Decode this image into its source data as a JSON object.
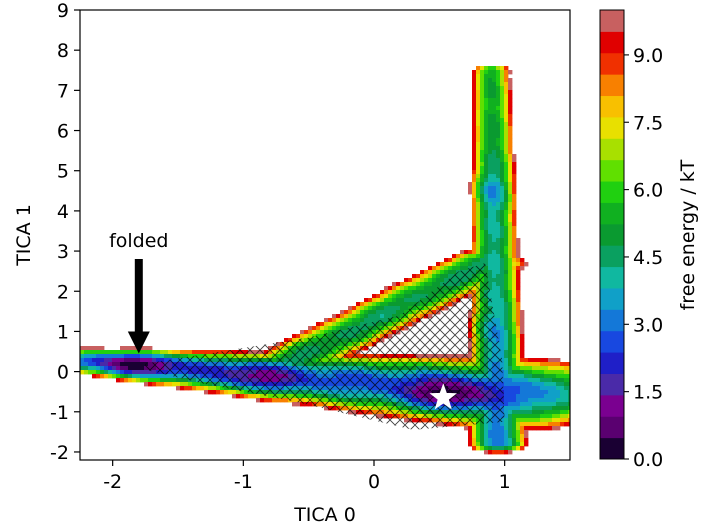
{
  "chart_data": {
    "type": "heatmap",
    "subtype": "free-energy-contour",
    "title": "",
    "xlabel": "TICA 0",
    "ylabel": "TICA 1",
    "xlim": [
      -2.25,
      1.5
    ],
    "ylim": [
      -2.2,
      9
    ],
    "x_ticks": [
      -2,
      -1,
      0,
      1
    ],
    "x_tick_labels": [
      "-2",
      "-1",
      "0",
      "1"
    ],
    "y_ticks": [
      -2,
      -1,
      0,
      1,
      2,
      3,
      4,
      5,
      6,
      7,
      8,
      9
    ],
    "y_tick_labels": [
      "-2",
      "-1",
      "0",
      "1",
      "2",
      "3",
      "4",
      "5",
      "6",
      "7",
      "8",
      "9"
    ],
    "grid": false,
    "colorbar": {
      "label": "free energy / kT",
      "range": [
        0,
        10
      ],
      "ticks": [
        0,
        1.5,
        3,
        4.5,
        6,
        7.5,
        9
      ],
      "tick_labels": [
        "0.0",
        "1.5",
        "3.0",
        "4.5",
        "6.0",
        "7.5",
        "9.0"
      ],
      "levels": 20,
      "colors": [
        "#1a0033",
        "#5a0070",
        "#7a0090",
        "#4a2aa8",
        "#1f1fc8",
        "#1848e0",
        "#1478d8",
        "#10a0c8",
        "#10b8a0",
        "#0aa060",
        "#0a9a30",
        "#10b020",
        "#20d010",
        "#60e000",
        "#a8e000",
        "#e8e000",
        "#f8c000",
        "#f88000",
        "#f03000",
        "#e00000",
        "#c86060"
      ]
    },
    "regions": [
      {
        "type": "min",
        "x": 0.55,
        "y": -0.6,
        "energy": 0.8
      },
      {
        "type": "min",
        "x": -1.8,
        "y": 0.2,
        "energy": 1.2
      },
      {
        "type": "min",
        "x": -0.9,
        "y": -0.2,
        "energy": 2.4
      },
      {
        "type": "min",
        "x": 0.82,
        "y": 4.5,
        "energy": 3.2
      },
      {
        "type": "min",
        "x": 0.7,
        "y": 1.0,
        "energy": 4.0
      }
    ],
    "hatched_region": "cross-hatched sampled area",
    "marker": {
      "shape": "star",
      "x": 0.53,
      "y": -0.65,
      "color": "#ffffff"
    },
    "annotations": [
      {
        "text": "folded",
        "x": -1.8,
        "y": 3.1,
        "arrow_to": [
          -1.8,
          0.45
        ]
      }
    ]
  }
}
